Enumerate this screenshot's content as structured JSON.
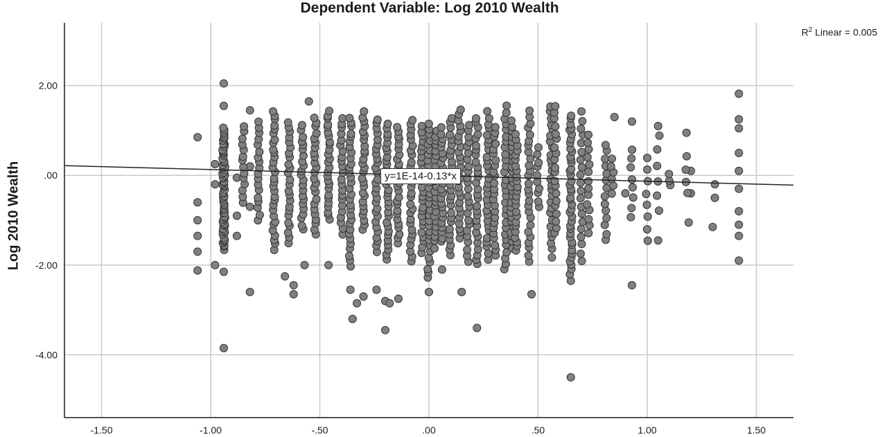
{
  "chart_data": {
    "type": "scatter",
    "title": "Dependent Variable: Log 2010 Wealth",
    "xlabel": "",
    "ylabel": "Log 2010 Wealth",
    "xlim": [
      -1.67,
      1.67
    ],
    "ylim": [
      -5.4,
      3.4
    ],
    "xticks": [
      -1.5,
      -1.0,
      -0.5,
      0.0,
      0.5,
      1.0,
      1.5
    ],
    "xtick_labels": [
      "-1.50",
      "-1.00",
      "-.50",
      ".00",
      ".50",
      "1.00",
      "1.50"
    ],
    "yticks": [
      2.0,
      0.0,
      -2.0,
      -4.0
    ],
    "ytick_labels": [
      "2.00",
      ".00",
      "-2.00",
      "-4.00"
    ],
    "grid": true,
    "fit_line": {
      "intercept": 0.0,
      "slope": -0.13,
      "label": "y=1E-14-0.13*x"
    },
    "r2_prefix": "R",
    "r2_sup": "2",
    "r2_suffix": " Linear = 0.005",
    "point_color": "#808080",
    "series": [
      {
        "points": [
          [
            -1.06,
            0.85
          ],
          [
            -1.06,
            -0.6
          ],
          [
            -1.06,
            -1.0
          ],
          [
            -1.06,
            -1.35
          ],
          [
            -1.06,
            -1.7
          ],
          [
            -1.06,
            -2.12
          ],
          [
            -0.98,
            0.25
          ],
          [
            -0.98,
            -0.2
          ],
          [
            -0.98,
            -2.0
          ],
          [
            -0.94,
            2.05
          ],
          [
            -0.94,
            1.55
          ],
          [
            -0.94,
            -3.85
          ],
          [
            -0.94,
            -2.15
          ],
          [
            -0.88,
            -0.05
          ],
          [
            -0.88,
            -0.9
          ],
          [
            -0.88,
            -1.35
          ],
          [
            -0.82,
            1.45
          ],
          [
            -0.82,
            0.2
          ],
          [
            -0.82,
            -0.7
          ],
          [
            -0.82,
            -2.6
          ],
          [
            -0.66,
            -2.25
          ],
          [
            -0.62,
            -2.65
          ],
          [
            -0.62,
            -2.45
          ],
          [
            -0.55,
            1.65
          ],
          [
            -0.57,
            -2.0
          ],
          [
            -0.46,
            -2.0
          ],
          [
            -0.36,
            -2.55
          ],
          [
            -0.35,
            -3.2
          ],
          [
            -0.33,
            -2.85
          ],
          [
            -0.3,
            -2.7
          ],
          [
            -0.24,
            -2.55
          ],
          [
            -0.2,
            -2.8
          ],
          [
            -0.2,
            -3.45
          ],
          [
            -0.18,
            -2.85
          ],
          [
            -0.14,
            -2.75
          ],
          [
            0.0,
            -2.6
          ],
          [
            0.06,
            -2.1
          ],
          [
            0.15,
            -2.6
          ],
          [
            0.22,
            -3.4
          ],
          [
            0.47,
            -2.65
          ],
          [
            0.65,
            -4.5
          ],
          [
            0.65,
            -2.35
          ],
          [
            0.9,
            -0.4
          ],
          [
            0.93,
            -2.45
          ],
          [
            0.93,
            1.2
          ],
          [
            0.85,
            1.3
          ],
          [
            1.05,
            1.1
          ],
          [
            1.05,
            -1.45
          ],
          [
            1.18,
            0.95
          ],
          [
            1.19,
            -1.05
          ],
          [
            1.3,
            -1.15
          ],
          [
            1.31,
            -0.2
          ],
          [
            1.31,
            -0.5
          ],
          [
            1.42,
            1.82
          ],
          [
            1.42,
            1.25
          ],
          [
            1.42,
            1.05
          ],
          [
            1.42,
            0.5
          ],
          [
            1.42,
            -1.9
          ],
          [
            1.42,
            -1.35
          ],
          [
            1.42,
            -1.1
          ],
          [
            1.42,
            -0.8
          ],
          [
            1.42,
            -0.3
          ],
          [
            1.42,
            0.1
          ],
          [
            1.2,
            0.1
          ],
          [
            1.2,
            -0.4
          ]
        ]
      }
    ]
  }
}
